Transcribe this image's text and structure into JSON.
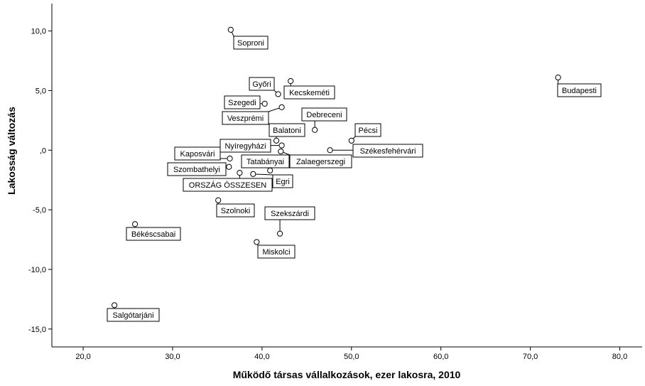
{
  "chart_data": {
    "type": "scatter",
    "title": "",
    "xlabel": "Működő társas vállalkozások, ezer lakosra, 2010",
    "ylabel": "Lakosság változás",
    "xlim": [
      16.5,
      82.5
    ],
    "ylim": [
      -16.5,
      12.3
    ],
    "x_ticks": [
      20,
      30,
      40,
      50,
      60,
      70,
      80
    ],
    "x_tick_labels": [
      "20,0",
      "30,0",
      "40,0",
      "50,0",
      "60,0",
      "70,0",
      "80,0"
    ],
    "y_ticks": [
      10,
      5,
      0,
      -5,
      -10,
      -15
    ],
    "y_tick_labels": [
      "10,0",
      "5,0",
      ",0",
      "-5,0",
      "-10,0",
      "-15,0"
    ],
    "grid": false,
    "legend": "none",
    "background_color": "#ffffff",
    "marker_color": "#000000",
    "points": [
      {
        "label": "Soproni",
        "x": 36.5,
        "y": 10.1
      },
      {
        "label": "Budapesti",
        "x": 73.1,
        "y": 6.1
      },
      {
        "label": "Kecskeméti",
        "x": 43.2,
        "y": 5.8
      },
      {
        "label": "Győri",
        "x": 41.8,
        "y": 4.7
      },
      {
        "label": "Szegedi",
        "x": 40.3,
        "y": 3.9
      },
      {
        "label": "Veszprémi",
        "x": 42.2,
        "y": 3.6
      },
      {
        "label": "Debreceni",
        "x": 45.9,
        "y": 1.7
      },
      {
        "label": "Pécsi",
        "x": 50.0,
        "y": 0.8
      },
      {
        "label": "Balatoni",
        "x": 41.6,
        "y": 0.8
      },
      {
        "label": "Nyíregyházi",
        "x": 42.2,
        "y": 0.4
      },
      {
        "label": "Székesfehérvári",
        "x": 47.6,
        "y": 0.0
      },
      {
        "label": "Zalaegerszegi",
        "x": 42.1,
        "y": -0.1
      },
      {
        "label": "Kaposvári",
        "x": 36.4,
        "y": -0.7
      },
      {
        "label": "Tatabányai",
        "x": 40.9,
        "y": -1.7
      },
      {
        "label": "Szombathelyi",
        "x": 36.3,
        "y": -1.4
      },
      {
        "label": "ORSZÁG ÖSSZESEN",
        "x": 37.5,
        "y": -1.9
      },
      {
        "label": "Egri",
        "x": 39.0,
        "y": -2.0
      },
      {
        "label": "Szolnoki",
        "x": 35.1,
        "y": -4.2
      },
      {
        "label": "Szekszárdi",
        "x": 42.0,
        "y": -7.0
      },
      {
        "label": "Békéscsabai",
        "x": 25.8,
        "y": -6.2
      },
      {
        "label": "Miskolci",
        "x": 39.4,
        "y": -7.7
      },
      {
        "label": "Salgótarjáni",
        "x": 23.5,
        "y": -13.0
      }
    ]
  }
}
